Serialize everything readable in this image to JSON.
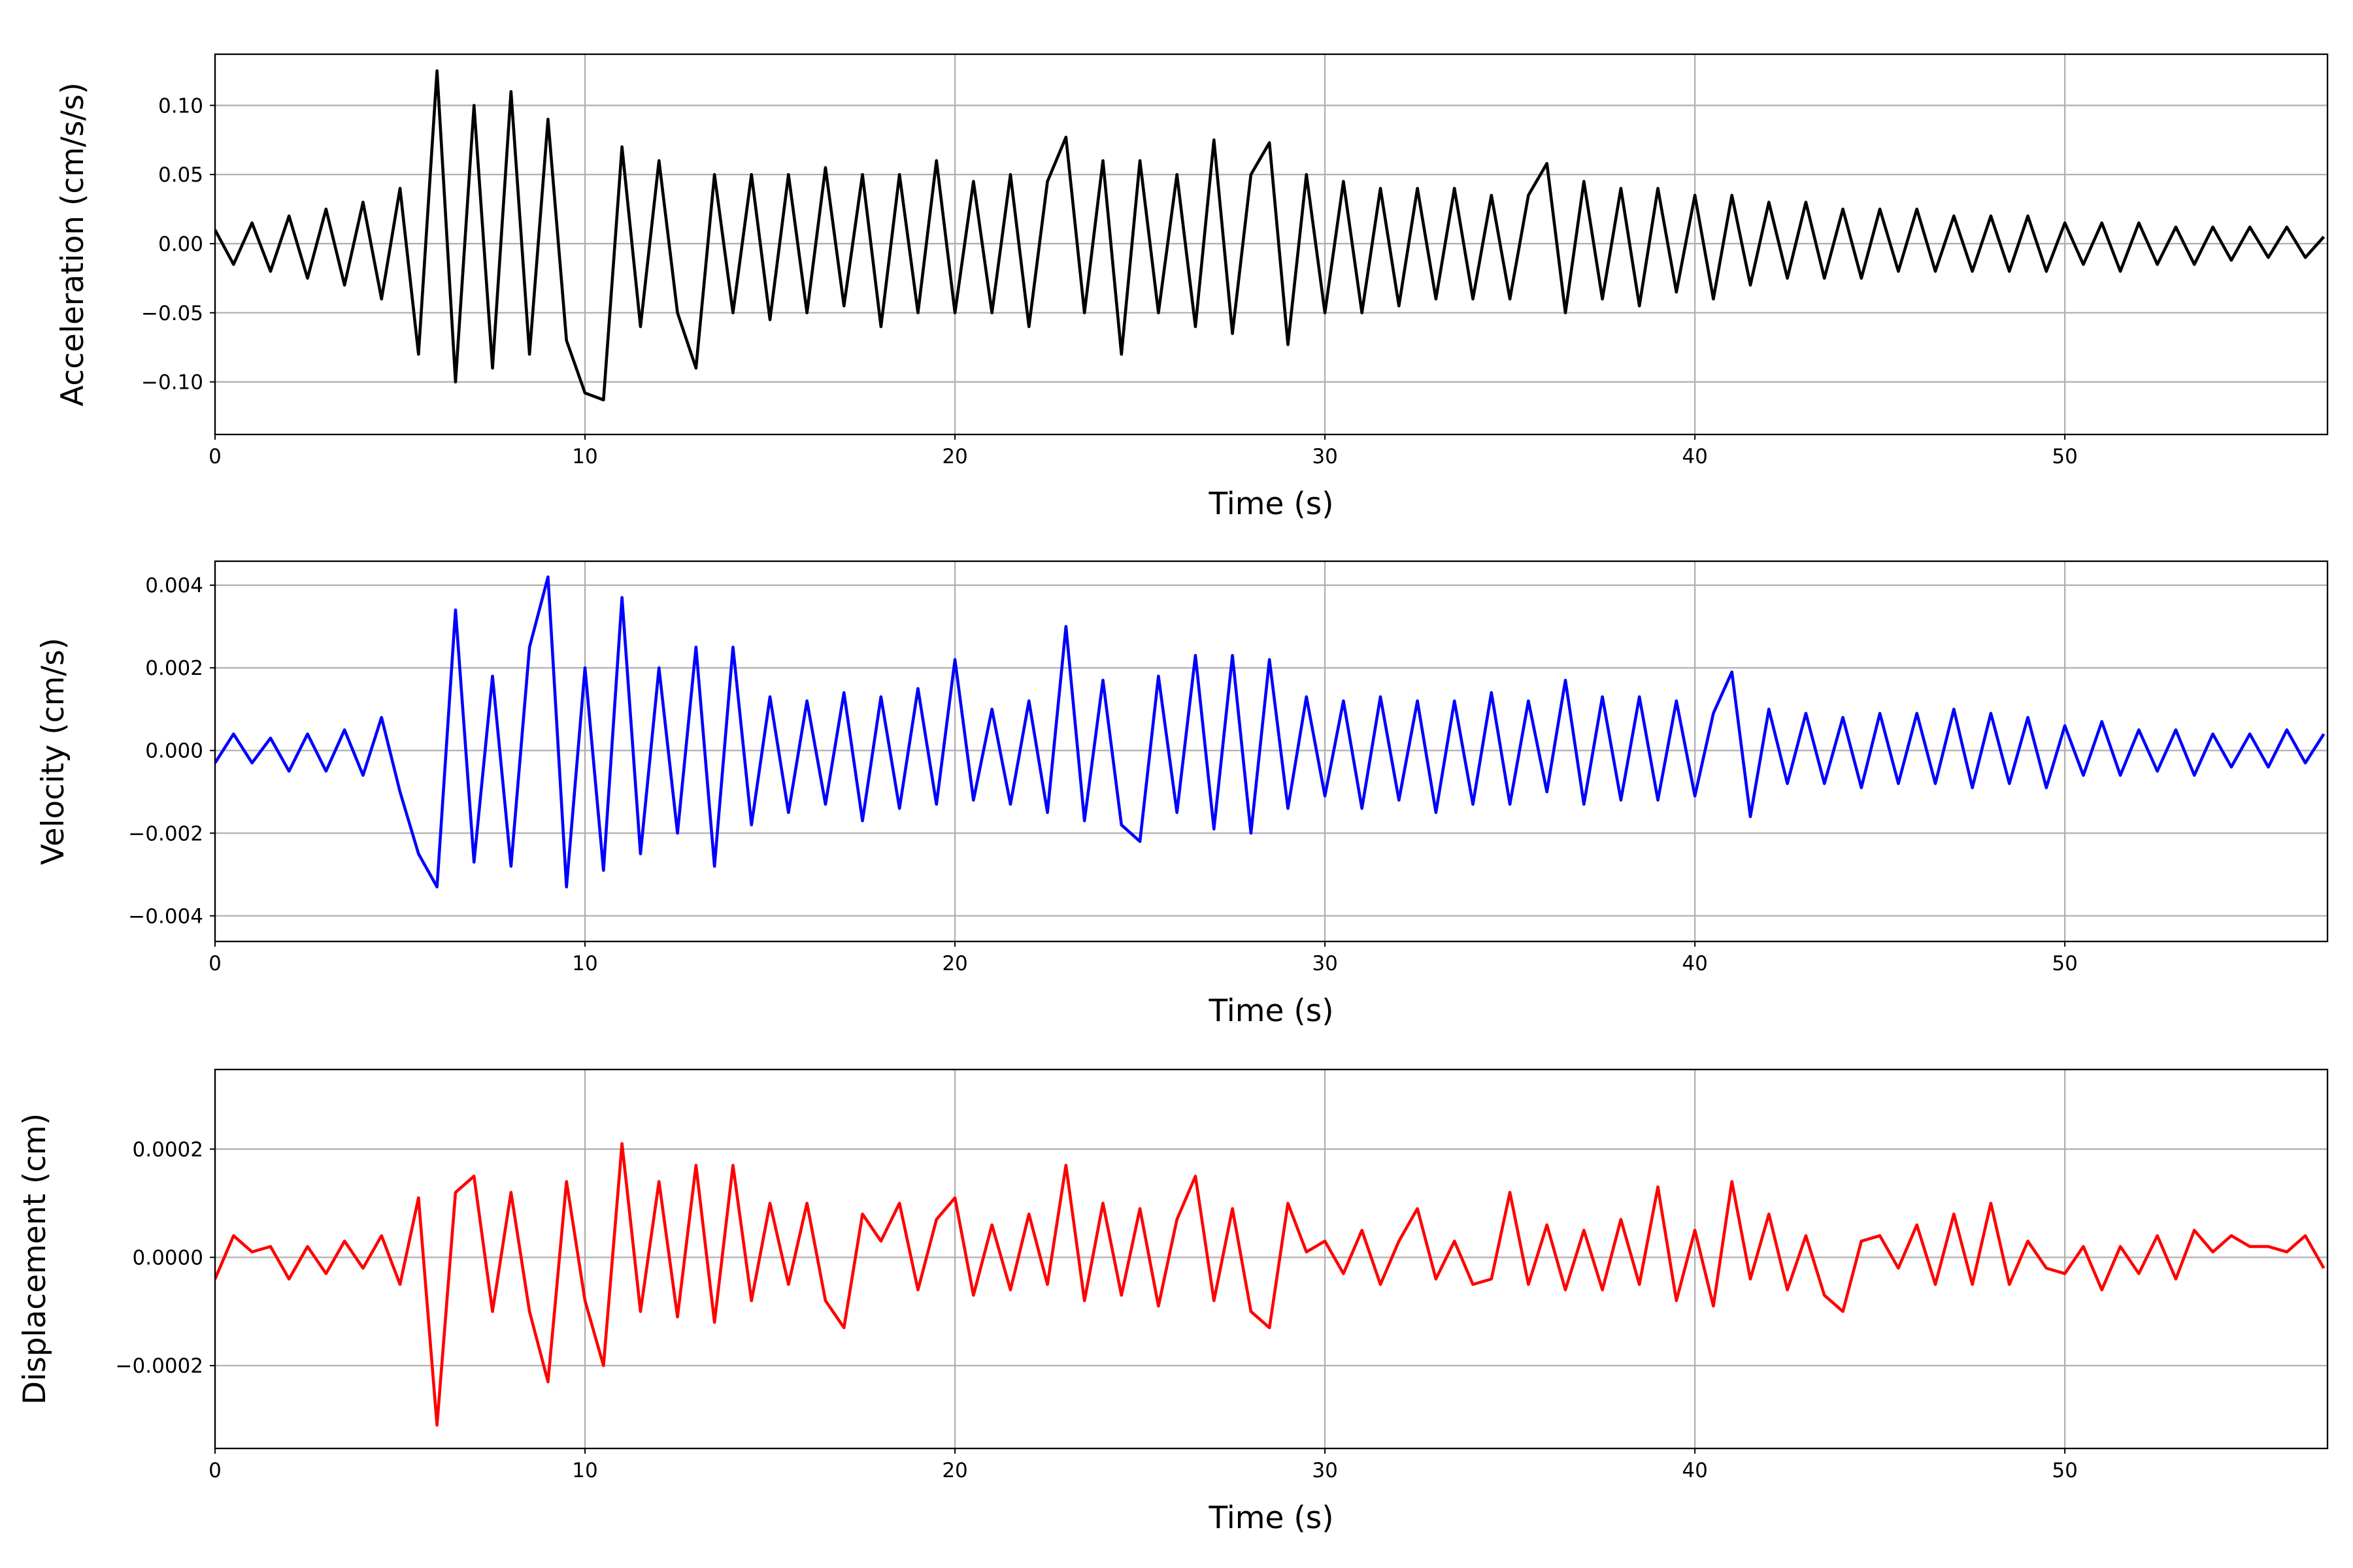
{
  "chart_data": [
    {
      "type": "line",
      "xlabel": "Time (s)",
      "ylabel": "Acceleration (cm/s/s)",
      "color": "#000000",
      "grid": true,
      "xlim": [
        0,
        57.1
      ],
      "ylim": [
        -0.138,
        0.137
      ],
      "xticks": [
        0,
        10,
        20,
        30,
        40,
        50
      ],
      "yticks": [
        {
          "value": -0.1,
          "label": "−0.10"
        },
        {
          "value": -0.05,
          "label": "−0.05"
        },
        {
          "value": 0,
          "label": "0.00"
        },
        0.05,
        {
          "value": 0.1,
          "label": "0.10"
        }
      ],
      "x": [
        0,
        0.5,
        1,
        1.5,
        2,
        2.5,
        3,
        3.5,
        4,
        4.5,
        5,
        5.5,
        6,
        6.5,
        7,
        7.5,
        8,
        8.5,
        9,
        9.5,
        10,
        10.5,
        11,
        11.5,
        12,
        12.5,
        13,
        13.5,
        14,
        14.5,
        15,
        15.5,
        16,
        16.5,
        17,
        17.5,
        18,
        18.5,
        19,
        19.5,
        20,
        20.5,
        21,
        21.5,
        22,
        22.5,
        23,
        23.5,
        24,
        24.5,
        25,
        25.5,
        26,
        26.5,
        27,
        27.5,
        28,
        28.5,
        29,
        29.5,
        30,
        30.5,
        31,
        31.5,
        32,
        32.5,
        33,
        33.5,
        34,
        34.5,
        35,
        35.5,
        36,
        36.5,
        37,
        37.5,
        38,
        38.5,
        39,
        39.5,
        40,
        40.5,
        41,
        41.5,
        42,
        42.5,
        43,
        43.5,
        44,
        44.5,
        45,
        45.5,
        46,
        46.5,
        47,
        47.5,
        48,
        48.5,
        49,
        49.5,
        50,
        50.5,
        51,
        51.5,
        52,
        52.5,
        53,
        53.5,
        54,
        54.5,
        55,
        55.5,
        56,
        56.5,
        57
      ],
      "values": [
        0.01,
        -0.015,
        0.015,
        -0.02,
        0.02,
        -0.025,
        0.025,
        -0.03,
        0.03,
        -0.04,
        0.04,
        -0.08,
        0.125,
        -0.1,
        0.1,
        -0.09,
        0.11,
        -0.08,
        0.09,
        -0.07,
        -0.108,
        -0.113,
        0.07,
        -0.06,
        0.06,
        -0.05,
        -0.09,
        0.05,
        -0.05,
        0.05,
        -0.055,
        0.05,
        -0.05,
        0.055,
        -0.045,
        0.05,
        -0.06,
        0.05,
        -0.05,
        0.06,
        -0.05,
        0.045,
        -0.05,
        0.05,
        -0.06,
        0.045,
        0.077,
        -0.05,
        0.06,
        -0.08,
        0.06,
        -0.05,
        0.05,
        -0.06,
        0.075,
        -0.065,
        0.05,
        0.073,
        -0.073,
        0.05,
        -0.05,
        0.045,
        -0.05,
        0.04,
        -0.045,
        0.04,
        -0.04,
        0.04,
        -0.04,
        0.035,
        -0.04,
        0.035,
        0.058,
        -0.05,
        0.045,
        -0.04,
        0.04,
        -0.045,
        0.04,
        -0.035,
        0.035,
        -0.04,
        0.035,
        -0.03,
        0.03,
        -0.025,
        0.03,
        -0.025,
        0.025,
        -0.025,
        0.025,
        -0.02,
        0.025,
        -0.02,
        0.02,
        -0.02,
        0.02,
        -0.02,
        0.02,
        -0.02,
        0.015,
        -0.015,
        0.015,
        -0.02,
        0.015,
        -0.015,
        0.012,
        -0.015,
        0.012,
        -0.012,
        0.012,
        -0.01,
        0.012,
        -0.01,
        0.005
      ]
    },
    {
      "type": "line",
      "xlabel": "Time (s)",
      "ylabel": "Velocity (cm/s)",
      "color": "#0000ff",
      "grid": true,
      "xlim": [
        0,
        57.1
      ],
      "ylim": [
        -0.00462,
        0.00458
      ],
      "xticks": [
        0,
        10,
        20,
        30,
        40,
        50
      ],
      "yticks": [
        {
          "value": -0.004,
          "label": "−0.004"
        },
        {
          "value": -0.002,
          "label": "−0.002"
        },
        {
          "value": 0,
          "label": "0.000"
        },
        0.002,
        0.004
      ],
      "x": [
        0,
        0.5,
        1,
        1.5,
        2,
        2.5,
        3,
        3.5,
        4,
        4.5,
        5,
        5.5,
        6,
        6.5,
        7,
        7.5,
        8,
        8.5,
        9,
        9.5,
        10,
        10.5,
        11,
        11.5,
        12,
        12.5,
        13,
        13.5,
        14,
        14.5,
        15,
        15.5,
        16,
        16.5,
        17,
        17.5,
        18,
        18.5,
        19,
        19.5,
        20,
        20.5,
        21,
        21.5,
        22,
        22.5,
        23,
        23.5,
        24,
        24.5,
        25,
        25.5,
        26,
        26.5,
        27,
        27.5,
        28,
        28.5,
        29,
        29.5,
        30,
        30.5,
        31,
        31.5,
        32,
        32.5,
        33,
        33.5,
        34,
        34.5,
        35,
        35.5,
        36,
        36.5,
        37,
        37.5,
        38,
        38.5,
        39,
        39.5,
        40,
        40.5,
        41,
        41.5,
        42,
        42.5,
        43,
        43.5,
        44,
        44.5,
        45,
        45.5,
        46,
        46.5,
        47,
        47.5,
        48,
        48.5,
        49,
        49.5,
        50,
        50.5,
        51,
        51.5,
        52,
        52.5,
        53,
        53.5,
        54,
        54.5,
        55,
        55.5,
        56,
        56.5,
        57
      ],
      "values": [
        -0.0003,
        0.0004,
        -0.0003,
        0.0003,
        -0.0005,
        0.0004,
        -0.0005,
        0.0005,
        -0.0006,
        0.0008,
        -0.001,
        -0.0025,
        -0.0033,
        0.0034,
        -0.0027,
        0.0018,
        -0.0028,
        0.0025,
        0.0042,
        -0.0033,
        0.002,
        -0.0029,
        0.0037,
        -0.0025,
        0.002,
        -0.002,
        0.0025,
        -0.0028,
        0.0025,
        -0.0018,
        0.0013,
        -0.0015,
        0.0012,
        -0.0013,
        0.0014,
        -0.0017,
        0.0013,
        -0.0014,
        0.0015,
        -0.0013,
        0.0022,
        -0.0012,
        0.001,
        -0.0013,
        0.0012,
        -0.0015,
        0.003,
        -0.0017,
        0.0017,
        -0.0018,
        -0.0022,
        0.0018,
        -0.0015,
        0.0023,
        -0.0019,
        0.0023,
        -0.002,
        0.0022,
        -0.0014,
        0.0013,
        -0.0011,
        0.0012,
        -0.0014,
        0.0013,
        -0.0012,
        0.0012,
        -0.0015,
        0.0012,
        -0.0013,
        0.0014,
        -0.0013,
        0.0012,
        -0.001,
        0.0017,
        -0.0013,
        0.0013,
        -0.0012,
        0.0013,
        -0.0012,
        0.0012,
        -0.0011,
        0.0009,
        0.0019,
        -0.0016,
        0.001,
        -0.0008,
        0.0009,
        -0.0008,
        0.0008,
        -0.0009,
        0.0009,
        -0.0008,
        0.0009,
        -0.0008,
        0.001,
        -0.0009,
        0.0009,
        -0.0008,
        0.0008,
        -0.0009,
        0.0006,
        -0.0006,
        0.0007,
        -0.0006,
        0.0005,
        -0.0005,
        0.0005,
        -0.0006,
        0.0004,
        -0.0004,
        0.0004,
        -0.0004,
        0.0005,
        -0.0003,
        0.0004
      ]
    },
    {
      "type": "line",
      "xlabel": "Time (s)",
      "ylabel": "Displacement (cm)",
      "color": "#ff0000",
      "grid": true,
      "xlim": [
        0,
        57.1
      ],
      "ylim": [
        -0.000353,
        0.000347
      ],
      "xticks": [
        0,
        10,
        20,
        30,
        40,
        50
      ],
      "yticks": [
        {
          "value": -0.0002,
          "label": "−0.0002"
        },
        {
          "value": 0,
          "label": "0.0000"
        },
        0.0002
      ],
      "x": [
        0,
        0.5,
        1,
        1.5,
        2,
        2.5,
        3,
        3.5,
        4,
        4.5,
        5,
        5.5,
        6,
        6.5,
        7,
        7.5,
        8,
        8.5,
        9,
        9.5,
        10,
        10.5,
        11,
        11.5,
        12,
        12.5,
        13,
        13.5,
        14,
        14.5,
        15,
        15.5,
        16,
        16.5,
        17,
        17.5,
        18,
        18.5,
        19,
        19.5,
        20,
        20.5,
        21,
        21.5,
        22,
        22.5,
        23,
        23.5,
        24,
        24.5,
        25,
        25.5,
        26,
        26.5,
        27,
        27.5,
        28,
        28.5,
        29,
        29.5,
        30,
        30.5,
        31,
        31.5,
        32,
        32.5,
        33,
        33.5,
        34,
        34.5,
        35,
        35.5,
        36,
        36.5,
        37,
        37.5,
        38,
        38.5,
        39,
        39.5,
        40,
        40.5,
        41,
        41.5,
        42,
        42.5,
        43,
        43.5,
        44,
        44.5,
        45,
        45.5,
        46,
        46.5,
        47,
        47.5,
        48,
        48.5,
        49,
        49.5,
        50,
        50.5,
        51,
        51.5,
        52,
        52.5,
        53,
        53.5,
        54,
        54.5,
        55,
        55.5,
        56,
        56.5,
        57
      ],
      "values": [
        -4e-05,
        4e-05,
        1e-05,
        2e-05,
        -4e-05,
        2e-05,
        -3e-05,
        3e-05,
        -2e-05,
        4e-05,
        -5e-05,
        0.00011,
        -0.00031,
        0.00012,
        0.00015,
        -0.0001,
        0.00012,
        -0.0001,
        -0.00023,
        0.00014,
        -8e-05,
        -0.0002,
        0.00021,
        -0.0001,
        0.00014,
        -0.00011,
        0.00017,
        -0.00012,
        0.00017,
        -8e-05,
        0.0001,
        -5e-05,
        0.0001,
        -8e-05,
        -0.00013,
        8e-05,
        3e-05,
        0.0001,
        -6e-05,
        7e-05,
        0.00011,
        -7e-05,
        6e-05,
        -6e-05,
        8e-05,
        -5e-05,
        0.00017,
        -8e-05,
        0.0001,
        -7e-05,
        9e-05,
        -9e-05,
        7e-05,
        0.00015,
        -8e-05,
        9e-05,
        -0.0001,
        -0.00013,
        0.0001,
        1e-05,
        3e-05,
        -3e-05,
        5e-05,
        -5e-05,
        3e-05,
        9e-05,
        -4e-05,
        3e-05,
        -5e-05,
        -4e-05,
        0.00012,
        -5e-05,
        6e-05,
        -6e-05,
        5e-05,
        -6e-05,
        7e-05,
        -5e-05,
        0.00013,
        -8e-05,
        5e-05,
        -9e-05,
        0.00014,
        -4e-05,
        8e-05,
        -6e-05,
        4e-05,
        -7e-05,
        -0.0001,
        3e-05,
        4e-05,
        -2e-05,
        6e-05,
        -5e-05,
        8e-05,
        -5e-05,
        0.0001,
        -5e-05,
        3e-05,
        -2e-05,
        -3e-05,
        2e-05,
        -6e-05,
        2e-05,
        -3e-05,
        4e-05,
        -4e-05,
        5e-05,
        1e-05,
        4e-05,
        2e-05,
        2e-05,
        1e-05,
        4e-05,
        -2e-05
      ]
    }
  ]
}
